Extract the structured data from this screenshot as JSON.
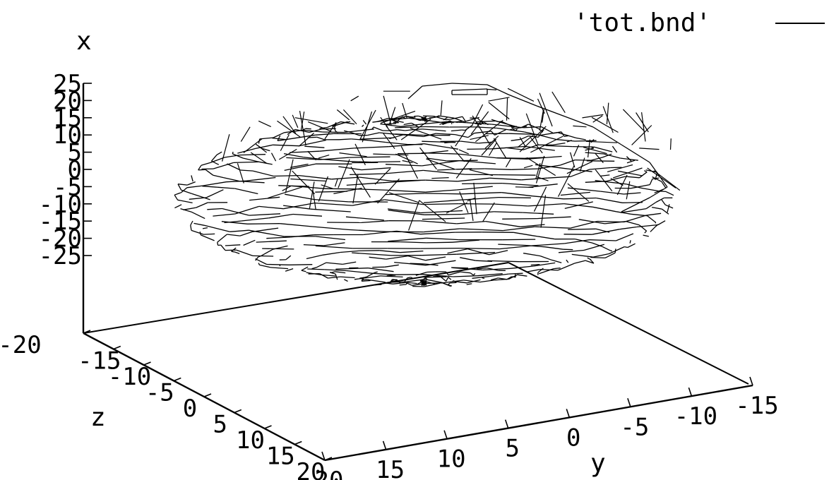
{
  "chart_data": {
    "type": "surface3d",
    "title": "",
    "legend": {
      "entries": [
        "'tot.bnd'"
      ],
      "placement": "top-right"
    },
    "axes": {
      "x": {
        "label": "x",
        "ticks": [
          "25",
          "20",
          "15",
          "10",
          "5",
          "0",
          "-5",
          "-10",
          "-15",
          "-20",
          "-25"
        ],
        "range": [
          -25,
          25
        ]
      },
      "y": {
        "label": "y",
        "ticks": [
          "20",
          "15",
          "10",
          "5",
          "0",
          "-5",
          "-10",
          "-15"
        ],
        "range": [
          -15,
          20
        ]
      },
      "z": {
        "label": "z",
        "ticks": [
          "-20",
          "-15",
          "-10",
          "-5",
          "0",
          "5",
          "10",
          "15",
          "20"
        ],
        "range": [
          -20,
          20
        ]
      }
    },
    "surface": {
      "description_units": "data units",
      "shape": "ellipsoidal shell",
      "center": {
        "x": 0,
        "y": 2.5,
        "z": 2.5
      },
      "semi_axes": {
        "x": 25,
        "y": 15,
        "z": 22
      }
    },
    "line_color": "#000000"
  }
}
